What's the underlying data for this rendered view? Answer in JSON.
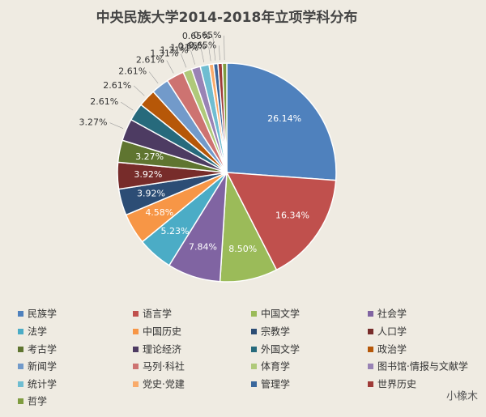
{
  "chart_data": {
    "type": "pie",
    "title": "中央民族大学2014-2018年立项学科分布",
    "categories": [
      "民族学",
      "语言学",
      "中国文学",
      "社会学",
      "法学",
      "中国历史",
      "宗教学",
      "人口学",
      "考古学",
      "理论经济",
      "外国文学",
      "政治学",
      "新闻学",
      "马列·科社",
      "体育学",
      "图书馆·情报与文献学",
      "统计学",
      "党史·党建",
      "管理学",
      "世界历史",
      "哲学"
    ],
    "values": [
      26.14,
      16.34,
      8.5,
      7.84,
      5.23,
      4.58,
      3.92,
      3.92,
      3.27,
      3.27,
      2.61,
      2.61,
      2.61,
      2.61,
      1.31,
      1.31,
      1.31,
      0.65,
      0.65,
      0.65,
      0.65
    ],
    "value_labels": [
      "26.14%",
      "16.34%",
      "8.50%",
      "7.84%",
      "5.23%",
      "4.58%",
      "3.92%",
      "3.92%",
      "3.27%",
      "3.27%",
      "2.61%",
      "2.61%",
      "2.61%",
      "2.61%",
      "1.31%",
      "1.31%",
      "1.31%",
      "0.65%",
      "0.65%",
      "0.65%",
      "0.65%"
    ],
    "colors": [
      "#4f81bd",
      "#c0504d",
      "#9bbb59",
      "#8064a2",
      "#4bacc6",
      "#f79646",
      "#2c4d75",
      "#772c2a",
      "#5f7530",
      "#4d3b62",
      "#276a7c",
      "#b65708",
      "#729aca",
      "#cd7371",
      "#afc97a",
      "#9983b5",
      "#6fbdd1",
      "#f9ab6b",
      "#3a679c",
      "#9f3b38",
      "#7f9c40"
    ],
    "legend": "bottom"
  },
  "watermark": "小橡木"
}
